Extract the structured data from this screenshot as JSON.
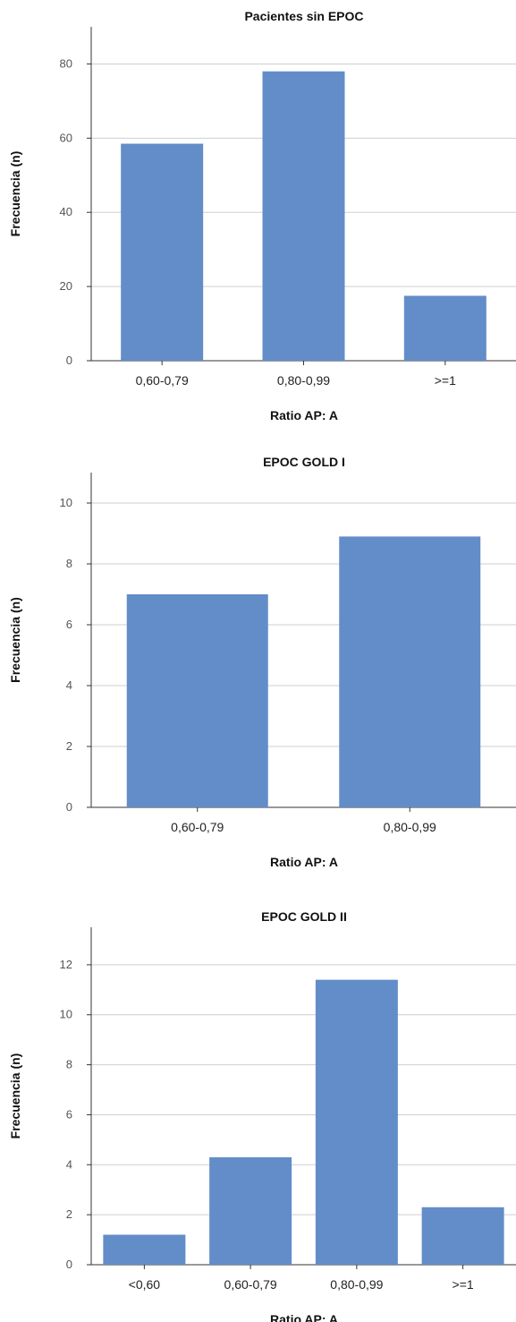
{
  "colors": {
    "bar": "#628dc8",
    "grid": "#cfcfcf",
    "axis": "#333333"
  },
  "chart_data": [
    {
      "type": "bar",
      "title": "Pacientes sin EPOC",
      "xlabel": "Ratio AP: A",
      "ylabel": "Frecuencia (n)",
      "categories": [
        "0,60-0,79",
        "0,80-0,99",
        ">=1"
      ],
      "values": [
        58.5,
        78,
        17.5
      ],
      "ylim": [
        0,
        90
      ],
      "yticks": [
        0,
        20,
        40,
        60,
        80
      ],
      "grid": true
    },
    {
      "type": "bar",
      "title": "EPOC GOLD I",
      "xlabel": "Ratio AP: A",
      "ylabel": "Frecuencia (n)",
      "categories": [
        "0,60-0,79",
        "0,80-0,99"
      ],
      "values": [
        7,
        8.9
      ],
      "ylim": [
        0,
        11
      ],
      "yticks": [
        0,
        2,
        4,
        6,
        8,
        10
      ],
      "grid": true
    },
    {
      "type": "bar",
      "title": "EPOC GOLD II",
      "xlabel": "Ratio AP: A",
      "ylabel": "Frecuencia (n)",
      "categories": [
        "<0,60",
        "0,60-0,79",
        "0,80-0,99",
        ">=1"
      ],
      "values": [
        1.2,
        4.3,
        11.4,
        2.3
      ],
      "ylim": [
        0,
        13.5
      ],
      "yticks": [
        0,
        2,
        4,
        6,
        8,
        10,
        12
      ],
      "grid": true
    }
  ]
}
